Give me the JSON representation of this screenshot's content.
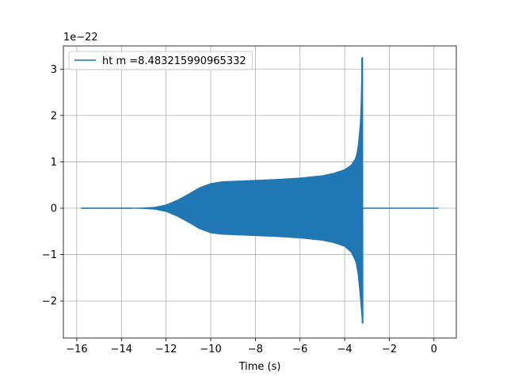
{
  "chart_data": {
    "type": "line",
    "xlabel": "Time (s)",
    "ylabel": "",
    "offset_text": "1e−22",
    "xlim": [
      -16.6,
      1.0
    ],
    "ylim": [
      -2.8,
      3.5
    ],
    "x_ticks": [
      -16,
      -14,
      -12,
      -10,
      -8,
      -6,
      -4,
      -2,
      0
    ],
    "x_tick_labels": [
      "−16",
      "−14",
      "−12",
      "−10",
      "−8",
      "−6",
      "−4",
      "−2",
      "0"
    ],
    "y_ticks": [
      -2,
      -1,
      0,
      1,
      2,
      3
    ],
    "y_tick_labels": [
      "−2",
      "−1",
      "0",
      "1",
      "2",
      "3"
    ],
    "grid": true,
    "legend_position": "top-left",
    "series": [
      {
        "name": "ht m =8.483215990965332",
        "color": "#1f77b4",
        "x_start": -15.8,
        "x_end": 0.2,
        "merger_time": -3.22,
        "envelope_upper": [
          [
            -15.8,
            0.0
          ],
          [
            -13.5,
            0.0
          ],
          [
            -13.0,
            0.005
          ],
          [
            -12.5,
            0.02
          ],
          [
            -12.0,
            0.07
          ],
          [
            -11.5,
            0.17
          ],
          [
            -11.0,
            0.3
          ],
          [
            -10.5,
            0.44
          ],
          [
            -10.0,
            0.53
          ],
          [
            -9.5,
            0.57
          ],
          [
            -9.0,
            0.58
          ],
          [
            -8.0,
            0.6
          ],
          [
            -7.0,
            0.62
          ],
          [
            -6.0,
            0.65
          ],
          [
            -5.0,
            0.7
          ],
          [
            -4.5,
            0.75
          ],
          [
            -4.0,
            0.83
          ],
          [
            -3.7,
            0.93
          ],
          [
            -3.5,
            1.08
          ],
          [
            -3.4,
            1.3
          ],
          [
            -3.3,
            1.8
          ],
          [
            -3.25,
            2.4
          ],
          [
            -3.22,
            3.25
          ]
        ],
        "envelope_lower": [
          [
            -15.8,
            0.0
          ],
          [
            -13.5,
            0.0
          ],
          [
            -13.0,
            -0.005
          ],
          [
            -12.5,
            -0.02
          ],
          [
            -12.0,
            -0.07
          ],
          [
            -11.5,
            -0.17
          ],
          [
            -11.0,
            -0.3
          ],
          [
            -10.5,
            -0.44
          ],
          [
            -10.0,
            -0.53
          ],
          [
            -9.5,
            -0.56
          ],
          [
            -9.0,
            -0.57
          ],
          [
            -8.0,
            -0.59
          ],
          [
            -7.0,
            -0.61
          ],
          [
            -6.0,
            -0.64
          ],
          [
            -5.0,
            -0.69
          ],
          [
            -4.5,
            -0.74
          ],
          [
            -4.0,
            -0.82
          ],
          [
            -3.7,
            -0.95
          ],
          [
            -3.5,
            -1.15
          ],
          [
            -3.4,
            -1.4
          ],
          [
            -3.3,
            -1.9
          ],
          [
            -3.25,
            -2.2
          ],
          [
            -3.2,
            -2.48
          ]
        ]
      }
    ]
  }
}
